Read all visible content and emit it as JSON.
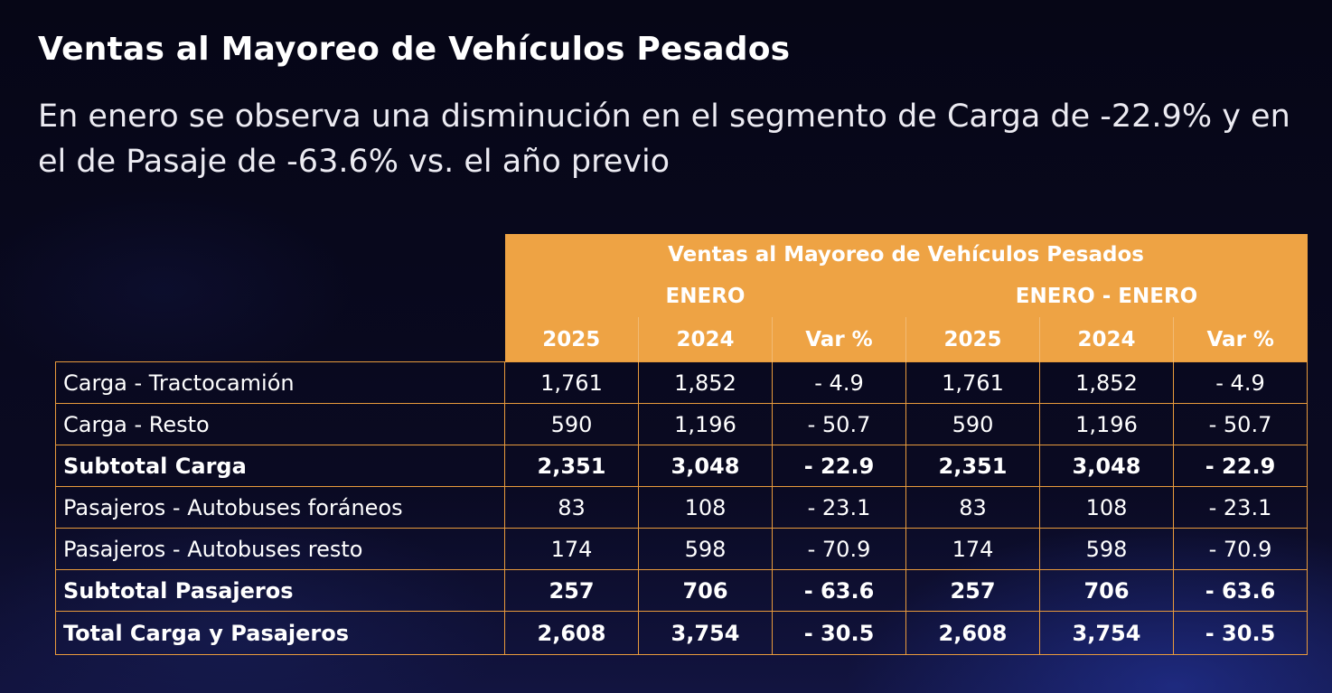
{
  "title": "Ventas al Mayoreo de Vehículos Pesados",
  "subtitle": "En enero se observa una disminución en el segmento de Carga de -22.9% y en el de Pasaje de -63.6% vs. el año previo",
  "table": {
    "header_title": "Ventas al Mayoreo de Vehículos Pesados",
    "group_enero": "ENERO",
    "group_enero_enero": "ENERO - ENERO",
    "columns": [
      "2025",
      "2024",
      "Var %",
      "2025",
      "2024",
      "Var %"
    ],
    "rows": [
      {
        "label": "Carga - Tractocamión",
        "values": [
          "1,761",
          "1,852",
          "- 4.9",
          "1,761",
          "1,852",
          "- 4.9"
        ]
      },
      {
        "label": "Carga - Resto",
        "values": [
          "590",
          "1,196",
          "- 50.7",
          "590",
          "1,196",
          "- 50.7"
        ]
      },
      {
        "label": "Subtotal Carga",
        "values": [
          "2,351",
          "3,048",
          "- 22.9",
          "2,351",
          "3,048",
          "- 22.9"
        ]
      },
      {
        "label": "Pasajeros - Autobuses foráneos",
        "values": [
          "83",
          "108",
          "- 23.1",
          "83",
          "108",
          "- 23.1"
        ]
      },
      {
        "label": "Pasajeros - Autobuses resto",
        "values": [
          "174",
          "598",
          "- 70.9",
          "174",
          "598",
          "- 70.9"
        ]
      },
      {
        "label": "Subtotal Pasajeros",
        "values": [
          "257",
          "706",
          "- 63.6",
          "257",
          "706",
          "- 63.6"
        ]
      },
      {
        "label": "Total Carga y Pasajeros",
        "values": [
          "2,608",
          "3,754",
          "- 30.5",
          "2,608",
          "3,754",
          "- 30.5"
        ]
      }
    ]
  },
  "colors": {
    "accent": "#eea344",
    "border": "#e89a3c",
    "background": "#07071a"
  }
}
